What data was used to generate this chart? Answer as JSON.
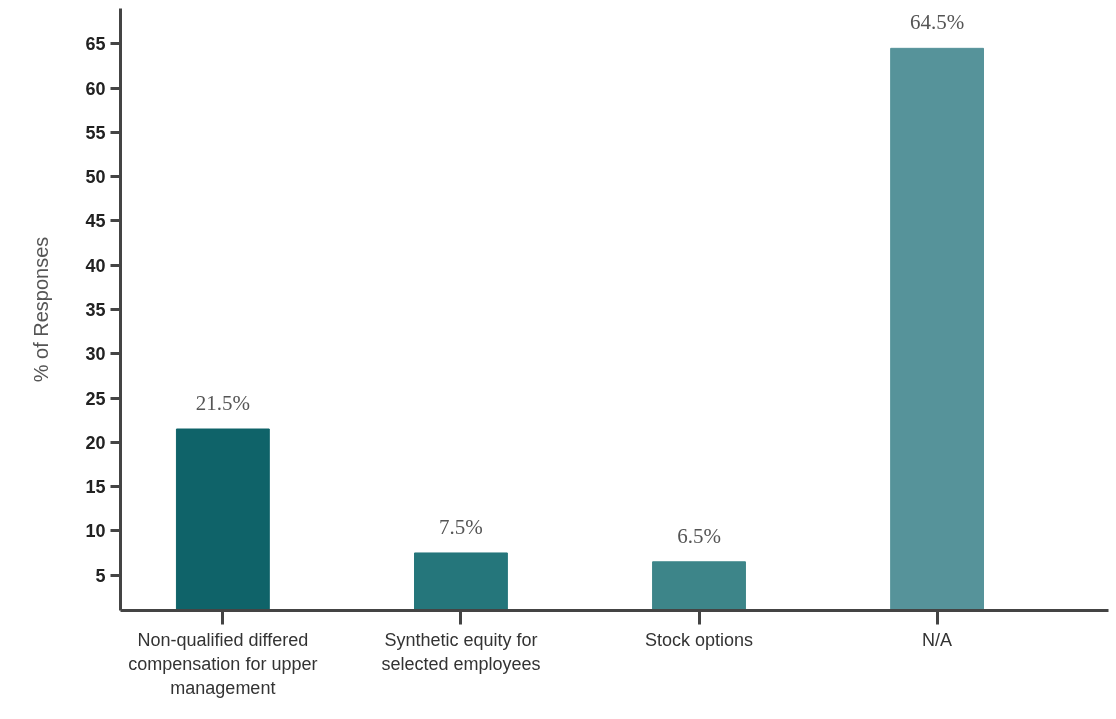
{
  "chart_data": {
    "type": "bar",
    "ylabel": "% of Responses",
    "categories": [
      "Non-qualified differed compensation for upper management",
      "Synthetic equity for selected employees",
      "Stock options",
      "N/A"
    ],
    "values": [
      21.5,
      7.5,
      6.5,
      64.5
    ],
    "colors": [
      "#0f6369",
      "#25767b",
      "#3d8589",
      "#56939a"
    ],
    "value_labels": [
      "21.5%",
      "7.5%",
      "6.5%",
      "64.5%"
    ],
    "ylim": [
      1,
      69
    ],
    "yticks": [
      5,
      10,
      15,
      20,
      25,
      30,
      35,
      40,
      45,
      50,
      55,
      60,
      65
    ],
    "grid": false
  }
}
